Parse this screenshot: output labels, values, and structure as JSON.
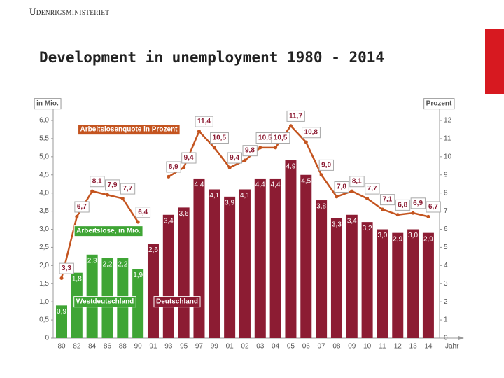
{
  "header": {
    "organization": "Udenrigsministeriet",
    "title": "Development in unemployment 1980 - 2014"
  },
  "chart_data": {
    "type": "bar-line",
    "categories": [
      "80",
      "82",
      "84",
      "86",
      "88",
      "90",
      "91",
      "93",
      "95",
      "97",
      "99",
      "01",
      "02",
      "03",
      "04",
      "05",
      "06",
      "07",
      "08",
      "09",
      "10",
      "11",
      "12",
      "13",
      "14"
    ],
    "y_label": "in Mio.",
    "y2_label": "Prozent",
    "x_label": "Jahr",
    "ylim": [
      0,
      6
    ],
    "yticks": [
      0,
      {
        "value": 0.5,
        "label": "0,5"
      },
      {
        "value": 1,
        "label": "1,0"
      },
      {
        "value": 1.5,
        "label": "1,5"
      },
      {
        "value": 2,
        "label": "2,0"
      },
      {
        "value": 2.5,
        "label": "2,5"
      },
      {
        "value": 3,
        "label": "3,0"
      },
      {
        "value": 3.5,
        "label": "3,5"
      },
      {
        "value": 4,
        "label": "4,0"
      },
      {
        "value": 4.5,
        "label": "4,5"
      },
      {
        "value": 5,
        "label": "5,0"
      },
      {
        "value": 5.5,
        "label": "5,5"
      },
      {
        "value": 6,
        "label": "6,0"
      }
    ],
    "y2lim": [
      0,
      12
    ],
    "y2ticks": [
      0,
      1,
      2,
      3,
      4,
      5,
      6,
      7,
      8,
      9,
      10,
      11,
      12
    ],
    "annotation": "Arbeitslose, in Mio.",
    "series": [
      {
        "name": "Westdeutschland",
        "type": "bar",
        "color": "#3fa535",
        "values": [
          0.9,
          1.8,
          2.3,
          2.2,
          2.2,
          1.9,
          null,
          null,
          null,
          null,
          null,
          null,
          null,
          null,
          null,
          null,
          null,
          null,
          null,
          null,
          null,
          null,
          null,
          null,
          null
        ],
        "value_labels": [
          "0,9",
          "1,8",
          "2,3",
          "2,2",
          "2,2",
          "1,9",
          null,
          null,
          null,
          null,
          null,
          null,
          null,
          null,
          null,
          null,
          null,
          null,
          null,
          null,
          null,
          null,
          null,
          null,
          null
        ]
      },
      {
        "name": "Deutschland",
        "type": "bar",
        "color": "#8c1c33",
        "values": [
          null,
          null,
          null,
          null,
          null,
          null,
          2.6,
          3.4,
          3.6,
          4.4,
          4.1,
          3.9,
          4.1,
          4.4,
          4.4,
          4.9,
          4.5,
          3.8,
          3.3,
          3.4,
          3.2,
          3.0,
          2.9,
          3.0,
          2.9
        ],
        "value_labels": [
          null,
          null,
          null,
          null,
          null,
          null,
          "2,6",
          "3,4",
          "3,6",
          "4,4",
          "4,1",
          "3,9",
          "4,1",
          "4,4",
          "4,4",
          "4,9",
          "4,5",
          "3,8",
          "3,3",
          "3,4",
          "3,2",
          "3,0",
          "2,9",
          "3,0",
          "2,9"
        ]
      },
      {
        "name": "Arbeitslosenquote in Prozent",
        "type": "line",
        "axis": "y2",
        "color": "#c4541f",
        "values": [
          3.3,
          6.7,
          8.1,
          7.9,
          7.7,
          6.4,
          null,
          8.9,
          9.4,
          11.4,
          10.5,
          9.4,
          9.8,
          10.5,
          10.5,
          11.7,
          10.8,
          9.0,
          7.8,
          8.1,
          7.7,
          7.1,
          6.8,
          6.9,
          6.7
        ],
        "value_labels": [
          "3,3",
          "6,7",
          "8,1",
          "7,9",
          "7,7",
          "6,4",
          null,
          "8,9",
          "9,4",
          "11,4",
          "10,5",
          "9,4",
          "9,8",
          "10,5",
          "10,5",
          "11,7",
          "10,8",
          "9,0",
          "7,8",
          "8,1",
          "7,7",
          "7,1",
          "6,8",
          "6,9",
          "6,7"
        ]
      }
    ]
  }
}
